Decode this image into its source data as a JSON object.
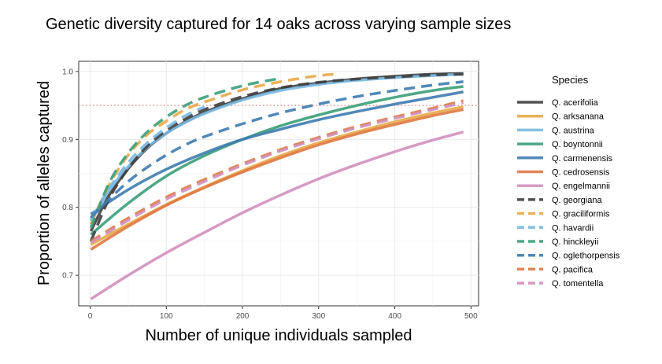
{
  "chart_data": {
    "type": "line",
    "title": "Genetic diversity captured for 14 oaks across varying sample sizes",
    "xlabel": "Number of unique individuals sampled",
    "ylabel": "Proportion of alleles captured",
    "xlim": [
      -15,
      510
    ],
    "ylim": [
      0.655,
      1.015
    ],
    "x_ticks": [
      0,
      100,
      200,
      300,
      400,
      500
    ],
    "x_tick_labels": [
      "0",
      "100",
      "200",
      "300",
      "400",
      "500"
    ],
    "y_ticks": [
      0.7,
      0.8,
      0.9,
      1.0
    ],
    "y_tick_labels": [
      "0.7",
      "0.8",
      "0.9",
      "1.0"
    ],
    "grid": true,
    "reference_line": {
      "y": 0.95,
      "color": "#f08080",
      "style": "dotted"
    },
    "legend": {
      "title": "Species",
      "position": "right"
    },
    "series": [
      {
        "name": "Q. acerifolia",
        "color": "#3f3f3f",
        "dash": "solid",
        "x": [
          1,
          25,
          50,
          75,
          100,
          125,
          150,
          200,
          250,
          300,
          350,
          400,
          450,
          490
        ],
        "y": [
          0.765,
          0.818,
          0.857,
          0.887,
          0.909,
          0.926,
          0.94,
          0.96,
          0.975,
          0.983,
          0.989,
          0.993,
          0.996,
          0.997
        ]
      },
      {
        "name": "Q. arksanana",
        "color": "#e8a848",
        "dash": "solid",
        "x": [
          1,
          50,
          100,
          150,
          200,
          250,
          300,
          350,
          400,
          450,
          490
        ],
        "y": [
          0.745,
          0.775,
          0.804,
          0.83,
          0.854,
          0.876,
          0.895,
          0.911,
          0.926,
          0.939,
          0.948
        ]
      },
      {
        "name": "Q. austrina",
        "color": "#78b8e0",
        "dash": "solid",
        "x": [
          1,
          25,
          50,
          75,
          100,
          125,
          150,
          200,
          250,
          300,
          350,
          400,
          450,
          490
        ],
        "y": [
          0.78,
          0.825,
          0.86,
          0.888,
          0.909,
          0.925,
          0.938,
          0.958,
          0.972,
          0.981,
          0.987,
          0.991,
          0.994,
          0.996
        ]
      },
      {
        "name": "Q. boyntonnii",
        "color": "#3a9e78",
        "dash": "solid",
        "x": [
          1,
          50,
          100,
          150,
          200,
          250,
          300,
          350,
          400,
          450,
          490
        ],
        "y": [
          0.76,
          0.806,
          0.846,
          0.876,
          0.9,
          0.92,
          0.936,
          0.95,
          0.962,
          0.972,
          0.978
        ]
      },
      {
        "name": "Q. carmenensis",
        "color": "#3d7bb0",
        "dash": "solid",
        "x": [
          1,
          50,
          100,
          150,
          200,
          250,
          300,
          350,
          400,
          450,
          490
        ],
        "y": [
          0.79,
          0.826,
          0.856,
          0.88,
          0.9,
          0.915,
          0.929,
          0.941,
          0.952,
          0.962,
          0.97
        ]
      },
      {
        "name": "Q. cedrosensis",
        "color": "#e07840",
        "dash": "solid",
        "x": [
          1,
          50,
          100,
          150,
          200,
          250,
          300,
          350,
          400,
          450,
          490
        ],
        "y": [
          0.738,
          0.772,
          0.803,
          0.829,
          0.852,
          0.873,
          0.892,
          0.908,
          0.922,
          0.935,
          0.944
        ]
      },
      {
        "name": "Q. engelmannii",
        "color": "#d090bc",
        "dash": "solid",
        "x": [
          1,
          50,
          100,
          150,
          200,
          250,
          300,
          350,
          400,
          450,
          490
        ],
        "y": [
          0.665,
          0.7,
          0.733,
          0.763,
          0.792,
          0.818,
          0.842,
          0.863,
          0.882,
          0.899,
          0.911
        ]
      },
      {
        "name": "Q. georgiana",
        "color": "#3f3f3f",
        "dash": "dashed",
        "x": [
          1,
          25,
          50,
          75,
          100,
          125,
          150,
          200,
          250,
          300,
          350,
          400,
          450,
          490
        ],
        "y": [
          0.75,
          0.813,
          0.857,
          0.89,
          0.913,
          0.93,
          0.944,
          0.963,
          0.976,
          0.984,
          0.989,
          0.992,
          0.995,
          0.996
        ]
      },
      {
        "name": "Q. graciliformis",
        "color": "#e8a848",
        "dash": "dashed",
        "x": [
          1,
          25,
          50,
          75,
          100,
          125,
          150,
          200,
          250,
          300,
          325
        ],
        "y": [
          0.775,
          0.833,
          0.877,
          0.907,
          0.927,
          0.944,
          0.955,
          0.973,
          0.985,
          0.994,
          0.996
        ]
      },
      {
        "name": "Q. havardii",
        "color": "#78b8e0",
        "dash": "dashed",
        "x": [
          1,
          25,
          50,
          75,
          100,
          125,
          150
        ],
        "y": [
          0.782,
          0.828,
          0.866,
          0.895,
          0.917,
          0.935,
          0.948
        ]
      },
      {
        "name": "Q. hinckleyii",
        "color": "#3a9e78",
        "dash": "dashed",
        "x": [
          1,
          25,
          50,
          75,
          100,
          125,
          150,
          200,
          250
        ],
        "y": [
          0.77,
          0.836,
          0.88,
          0.911,
          0.933,
          0.95,
          0.962,
          0.979,
          0.99
        ]
      },
      {
        "name": "Q. oglethorpensis",
        "color": "#3d7bb0",
        "dash": "dashed",
        "x": [
          1,
          25,
          50,
          75,
          100,
          125,
          150,
          200,
          250,
          300,
          350,
          400,
          450,
          490
        ],
        "y": [
          0.785,
          0.812,
          0.838,
          0.859,
          0.877,
          0.892,
          0.904,
          0.923,
          0.939,
          0.952,
          0.963,
          0.972,
          0.98,
          0.985
        ]
      },
      {
        "name": "Q. pacifica",
        "color": "#e07840",
        "dash": "dashed",
        "x": [
          1,
          50,
          100,
          150,
          200,
          250,
          300,
          350,
          400,
          450,
          490
        ],
        "y": [
          0.75,
          0.784,
          0.815,
          0.841,
          0.864,
          0.885,
          0.903,
          0.919,
          0.933,
          0.946,
          0.957
        ]
      },
      {
        "name": "Q. tomentella",
        "color": "#d090bc",
        "dash": "dashed",
        "x": [
          1,
          50,
          100,
          150,
          200,
          250,
          300,
          350,
          400,
          450,
          490
        ],
        "y": [
          0.748,
          0.781,
          0.812,
          0.838,
          0.862,
          0.883,
          0.901,
          0.917,
          0.931,
          0.944,
          0.954
        ]
      }
    ]
  }
}
